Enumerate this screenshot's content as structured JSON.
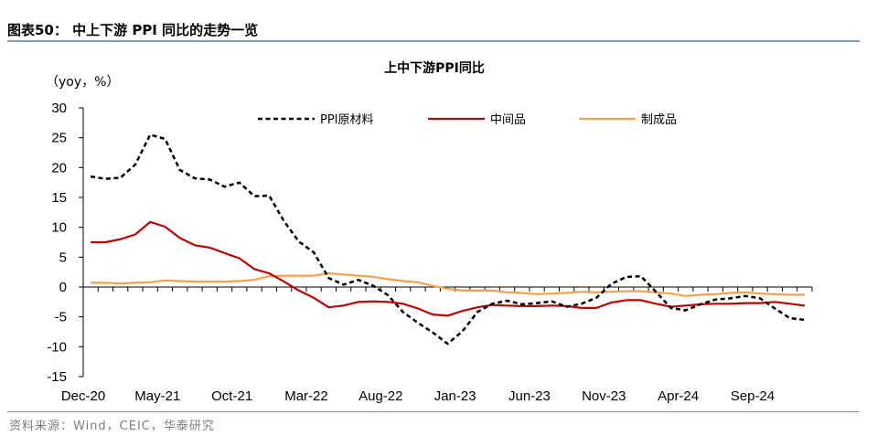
{
  "figure": {
    "title": "图表50：  中上下游 PPI 同比的走势一览",
    "source": "资料来源：Wind，CEIC，华泰研究"
  },
  "chart_data": {
    "type": "line",
    "title": "上中下游PPI同比",
    "ylabel": "（yoy，%）",
    "xlabel": "",
    "ylim": [
      -15,
      30
    ],
    "yticks": [
      30,
      25,
      20,
      15,
      10,
      5,
      0,
      -5,
      -10,
      -15
    ],
    "xtick_labels": [
      "Dec-20",
      "May-21",
      "Oct-21",
      "Mar-22",
      "Aug-22",
      "Jan-23",
      "Jun-23",
      "Nov-23",
      "Apr-24",
      "Sep-24"
    ],
    "x": [
      "Dec-20",
      "Jan-21",
      "Feb-21",
      "Mar-21",
      "Apr-21",
      "May-21",
      "Jun-21",
      "Jul-21",
      "Aug-21",
      "Sep-21",
      "Oct-21",
      "Nov-21",
      "Dec-21",
      "Jan-22",
      "Feb-22",
      "Mar-22",
      "Apr-22",
      "May-22",
      "Jun-22",
      "Jul-22",
      "Aug-22",
      "Sep-22",
      "Oct-22",
      "Nov-22",
      "Dec-22",
      "Jan-23",
      "Feb-23",
      "Mar-23",
      "Apr-23",
      "May-23",
      "Jun-23",
      "Jul-23",
      "Aug-23",
      "Sep-23",
      "Oct-23",
      "Nov-23",
      "Dec-23",
      "Jan-24",
      "Feb-24",
      "Mar-24",
      "Apr-24",
      "May-24",
      "Jun-24",
      "Jul-24",
      "Aug-24",
      "Sep-24",
      "Oct-24",
      "Nov-24",
      "Dec-24"
    ],
    "legend_position": "top-right",
    "grid": false,
    "series": [
      {
        "name": "PPI原材料",
        "color": "#000000",
        "style": "dashed",
        "values": [
          18.5,
          18.1,
          18.3,
          20.5,
          25.5,
          24.8,
          19.6,
          18.2,
          18.0,
          16.8,
          17.5,
          15.2,
          15.3,
          11.0,
          7.6,
          5.8,
          1.5,
          0.4,
          1.2,
          0.2,
          -1.4,
          -4.2,
          -6.0,
          -7.6,
          -9.5,
          -7.4,
          -4.2,
          -2.8,
          -2.3,
          -2.9,
          -2.7,
          -2.4,
          -3.3,
          -2.8,
          -1.8,
          0.5,
          1.7,
          1.8,
          -0.8,
          -3.5,
          -3.9,
          -2.9,
          -2.1,
          -1.9,
          -1.5,
          -1.9,
          -3.6,
          -5.2,
          -5.5
        ]
      },
      {
        "name": "中间品",
        "color": "#c00000",
        "style": "solid",
        "values": [
          7.5,
          7.5,
          8.0,
          8.8,
          10.9,
          10.1,
          8.2,
          7.0,
          6.6,
          5.7,
          4.8,
          3.0,
          2.3,
          0.9,
          -0.6,
          -1.8,
          -3.4,
          -3.1,
          -2.5,
          -2.4,
          -2.5,
          -2.8,
          -3.6,
          -4.6,
          -4.8,
          -4.0,
          -3.4,
          -3.0,
          -3.1,
          -3.2,
          -3.2,
          -3.1,
          -3.2,
          -3.5,
          -3.5,
          -2.6,
          -2.2,
          -2.2,
          -2.8,
          -3.3,
          -3.1,
          -2.9,
          -2.8,
          -2.8,
          -2.7,
          -2.7,
          -2.5,
          -2.8,
          -3.1
        ]
      },
      {
        "name": "制成品",
        "color": "#f4a14b",
        "style": "solid",
        "values": [
          0.7,
          0.7,
          0.6,
          0.7,
          0.8,
          1.1,
          1.0,
          0.9,
          0.9,
          0.9,
          1.0,
          1.2,
          1.8,
          1.9,
          1.9,
          1.9,
          2.3,
          2.1,
          1.9,
          1.7,
          1.3,
          1.0,
          0.8,
          0.2,
          -0.3,
          -0.6,
          -0.6,
          -0.6,
          -0.9,
          -1.0,
          -1.2,
          -1.1,
          -1.0,
          -0.8,
          -0.9,
          -0.8,
          -0.7,
          -0.7,
          -0.9,
          -1.1,
          -1.5,
          -1.3,
          -1.2,
          -1.0,
          -0.9,
          -1.1,
          -1.2,
          -1.3,
          -1.3
        ]
      }
    ]
  }
}
